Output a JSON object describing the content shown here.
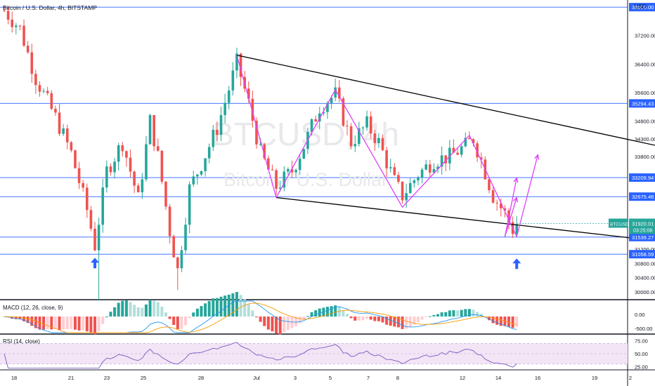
{
  "header": {
    "symbol_title": "Bitcoin / U.S. Dollar, 4h, BITSTAMP",
    "currency": "USD"
  },
  "watermark": {
    "ticker": "BTCUSD, 4h",
    "name": "Bitcoin / U.S. Dollar"
  },
  "chart_data": {
    "type": "candlestick",
    "price_axis": {
      "ticks": [
        "37200.00",
        "36400.00",
        "35600.00",
        "34800.00",
        "34300.00",
        "33800.00",
        "31200.00",
        "30800.00",
        "30400.00",
        "30000.00"
      ],
      "range": [
        29800,
        38200
      ]
    },
    "time_axis": {
      "labels": [
        "18",
        "21",
        "23",
        "25",
        "28",
        "Jul",
        "3",
        "5",
        "7",
        "8",
        "12",
        "14",
        "16",
        "19",
        "2"
      ]
    },
    "horizontal_levels": [
      {
        "price": 38000,
        "label": "38000.00"
      },
      {
        "price": 35294.43,
        "label": "35294.43"
      },
      {
        "price": 33209.94,
        "label": "33209.94"
      },
      {
        "price": 32675.46,
        "label": "32675.46"
      },
      {
        "price": 31539.27,
        "label": "31539.27"
      },
      {
        "price": 31058.59,
        "label": "31058.59"
      }
    ],
    "current_price": {
      "symbol": "BTCUSD",
      "price": "31920.01",
      "countdown": "03:25:08",
      "color": "#26a69a"
    },
    "trendlines": [
      {
        "name": "upper-trendline",
        "color": "#000000",
        "from": {
          "idx": 59,
          "price": 36650
        },
        "to": {
          "idx": 270,
          "price": 33820
        }
      },
      {
        "name": "lower-trendline",
        "color": "#000000",
        "from": {
          "idx": 69,
          "price": 32650
        },
        "to": {
          "idx": 277,
          "price": 31250
        }
      }
    ],
    "pattern_path": {
      "color": "#e040fb",
      "points": [
        {
          "idx": 59,
          "price": 36650
        },
        {
          "idx": 69,
          "price": 32650
        },
        {
          "idx": 84,
          "price": 35680
        },
        {
          "idx": 101,
          "price": 32380
        },
        {
          "idx": 118,
          "price": 34400
        },
        {
          "idx": 130,
          "price": 31550
        }
      ],
      "projections": [
        {
          "from": {
            "idx": 130,
            "price": 31550
          },
          "to": {
            "idx": 135,
            "price": 33850
          }
        },
        {
          "from": {
            "idx": 127,
            "price": 31550
          },
          "to": {
            "idx": 130,
            "price": 33200
          }
        },
        {
          "from": {
            "idx": 127,
            "price": 31550
          },
          "to": {
            "idx": 130,
            "price": 32650
          }
        }
      ]
    },
    "arrows": [
      {
        "name": "blue-arrow-left",
        "color": "#2962ff",
        "idx": 23,
        "price": 30800
      },
      {
        "name": "blue-arrow-right",
        "color": "#2962ff",
        "idx": 130,
        "price": 30780
      }
    ],
    "macd": {
      "label": "MACD (12, 26, close, 9)",
      "ticks": [
        "0.00",
        "-500.00"
      ]
    },
    "rsi": {
      "label": "RSI (14, close)",
      "ticks": [
        "75.00",
        "50.00",
        "25.00"
      ]
    },
    "colors": {
      "up": "#26a69a",
      "down": "#ef5350",
      "level_line": "#2962ff",
      "macd_line": "#2196f3",
      "signal_line": "#ff9800",
      "rsi_line": "#7e57c2",
      "rsi_band": "#f3e5f5"
    }
  }
}
